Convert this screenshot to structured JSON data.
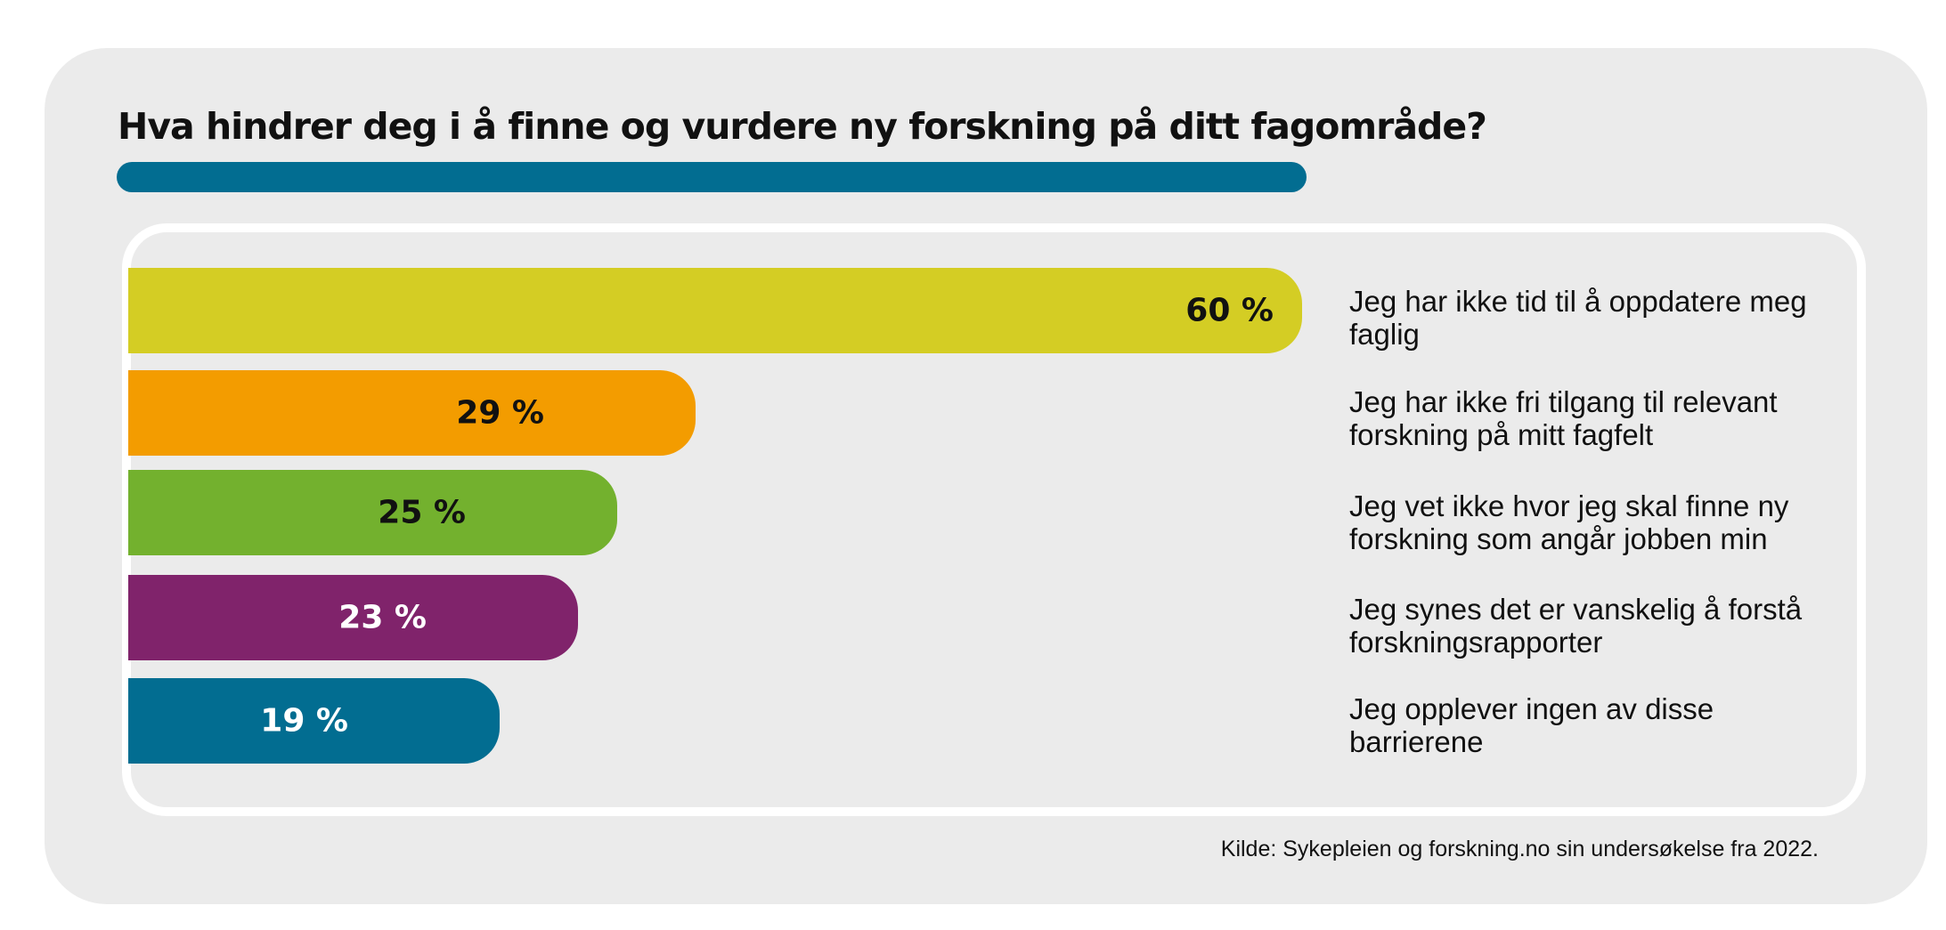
{
  "chart_data": {
    "type": "bar",
    "orientation": "horizontal",
    "title": "Hva hindrer deg i å finne og vurdere ny forskning på ditt fagområde?",
    "categories": [
      "Jeg har ikke tid til å oppdatere meg faglig",
      "Jeg har ikke fri tilgang til relevant forskning på mitt fagfelt",
      "Jeg vet ikke hvor jeg skal finne ny forskning som angår jobben min",
      "Jeg synes det er vanskelig å forstå forskningsrapporter",
      "Jeg opplever ingen av disse barrierene"
    ],
    "values": [
      60,
      29,
      25,
      23,
      19
    ],
    "value_labels": [
      "60 %",
      "29 %",
      "25 %",
      "23 %",
      "19 %"
    ],
    "unit": "%",
    "xlim": [
      0,
      60
    ],
    "source": "Kilde: Sykepleien og forskning.no sin undersøkelse fra 2022."
  },
  "colors": {
    "background": "#ebebeb",
    "title_bar": "#026d91",
    "bars": [
      "#d4cd24",
      "#f39c00",
      "#73b12e",
      "#80236b",
      "#026d91"
    ],
    "label_text": [
      "#111111",
      "#111111",
      "#111111",
      "#ffffff",
      "#ffffff"
    ]
  }
}
